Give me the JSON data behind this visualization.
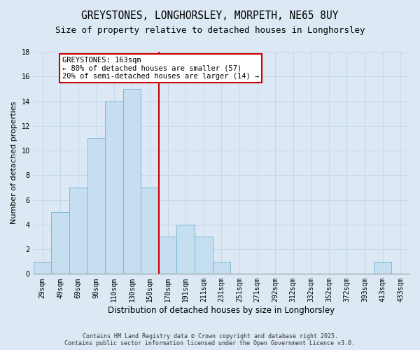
{
  "title": "GREYSTONES, LONGHORSLEY, MORPETH, NE65 8UY",
  "subtitle": "Size of property relative to detached houses in Longhorsley",
  "xlabel": "Distribution of detached houses by size in Longhorsley",
  "ylabel": "Number of detached properties",
  "bar_labels": [
    "29sqm",
    "49sqm",
    "69sqm",
    "90sqm",
    "110sqm",
    "130sqm",
    "150sqm",
    "170sqm",
    "191sqm",
    "211sqm",
    "231sqm",
    "251sqm",
    "271sqm",
    "292sqm",
    "312sqm",
    "332sqm",
    "352sqm",
    "372sqm",
    "393sqm",
    "413sqm",
    "433sqm"
  ],
  "bar_values": [
    1,
    5,
    7,
    11,
    14,
    15,
    7,
    3,
    4,
    3,
    1,
    0,
    0,
    0,
    0,
    0,
    0,
    0,
    0,
    1,
    0
  ],
  "bar_color": "#c5dff0",
  "bar_edgecolor": "#7fb5d5",
  "vline_color": "#cc0000",
  "annotation_title": "GREYSTONES: 163sqm",
  "annotation_line1": "← 80% of detached houses are smaller (57)",
  "annotation_line2": "20% of semi-detached houses are larger (14) →",
  "annotation_box_color": "white",
  "annotation_box_edgecolor": "#cc0000",
  "ylim": [
    0,
    18
  ],
  "yticks": [
    0,
    2,
    4,
    6,
    8,
    10,
    12,
    14,
    16,
    18
  ],
  "background_color": "#dce9f5",
  "grid_color": "#c5d8ec",
  "footer_line1": "Contains HM Land Registry data © Crown copyright and database right 2025.",
  "footer_line2": "Contains public sector information licensed under the Open Government Licence v3.0.",
  "title_fontsize": 10.5,
  "subtitle_fontsize": 9,
  "xlabel_fontsize": 8.5,
  "ylabel_fontsize": 8,
  "tick_fontsize": 7,
  "ann_fontsize": 7.5,
  "footer_fontsize": 6
}
